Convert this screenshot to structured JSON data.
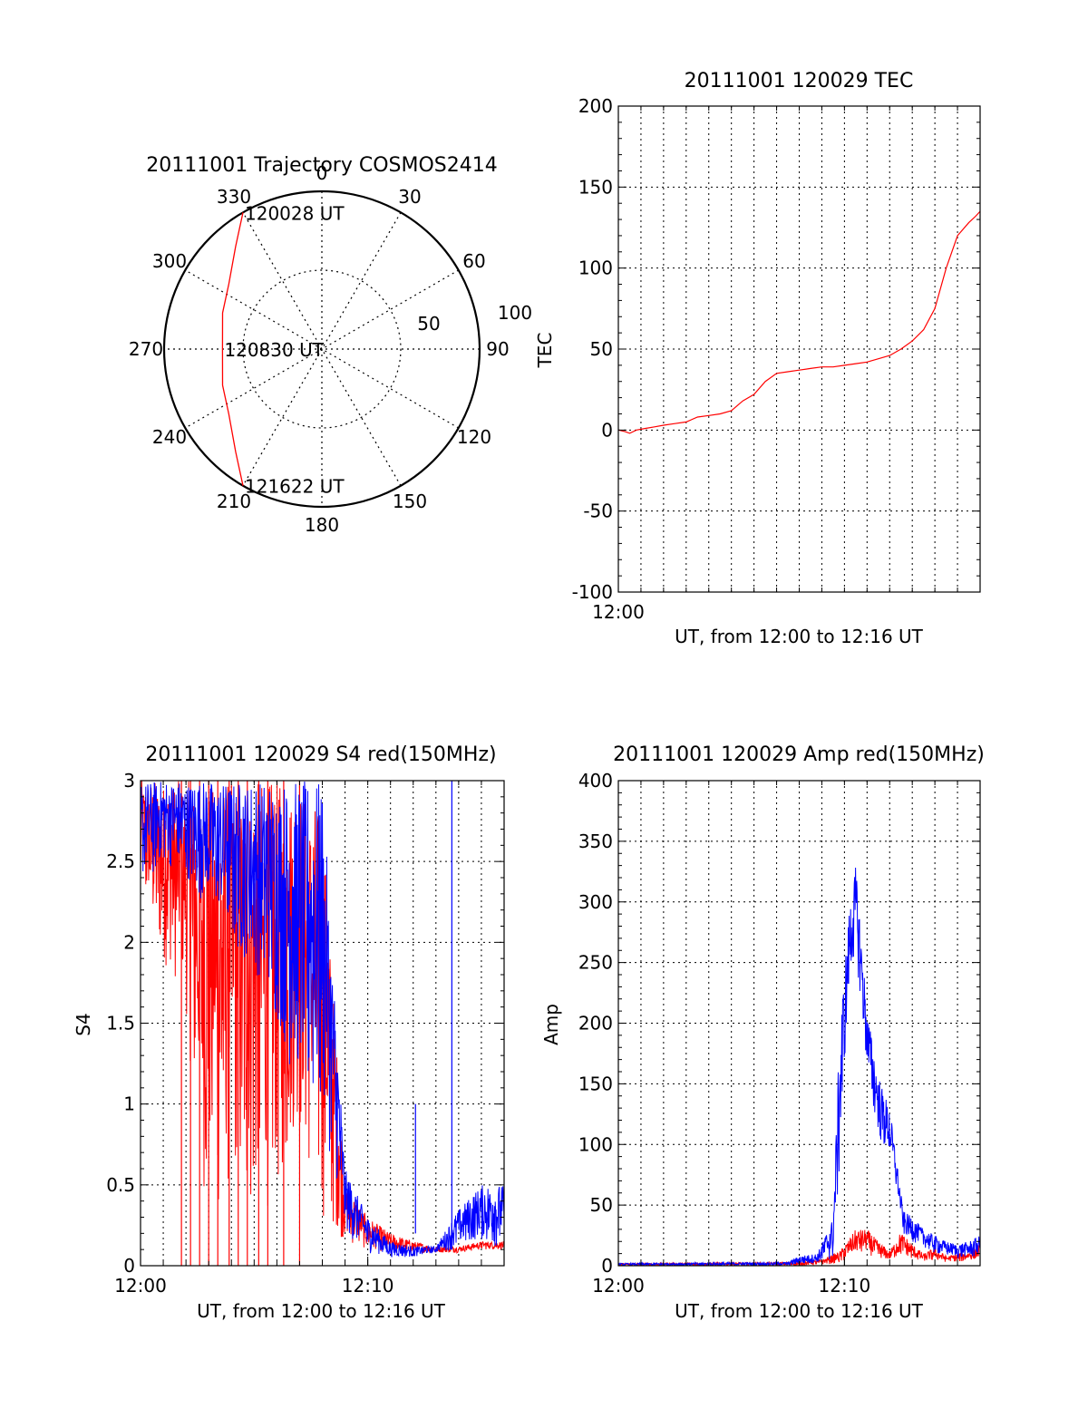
{
  "colors": {
    "red": "#ff0000",
    "blue": "#0000ff",
    "axis": "#000000",
    "grid": "#000000"
  },
  "chart_data": [
    {
      "id": "trajectory",
      "type": "polar",
      "title": "20111001 Trajectory COSMOS2414",
      "angle_labels": [
        "0",
        "30",
        "60",
        "90",
        "120",
        "150",
        "180",
        "210",
        "240",
        "270",
        "300",
        "330"
      ],
      "radius_labels": [
        "50",
        "100"
      ],
      "series": [
        {
          "color": "red",
          "points": [
            [
              330,
              100
            ],
            [
              320,
              85
            ],
            [
              305,
              72
            ],
            [
              290,
              67
            ],
            [
              270,
              63
            ],
            [
              250,
              67
            ],
            [
              235,
              72
            ],
            [
              220,
              85
            ],
            [
              210,
              100
            ]
          ]
        }
      ],
      "annotations": [
        {
          "text": "120028 UT",
          "az": 330,
          "r": 100
        },
        {
          "text": "120830 UT",
          "az": 270,
          "r": 63
        },
        {
          "text": "121622 UT",
          "az": 210,
          "r": 100
        }
      ]
    },
    {
      "id": "tec",
      "type": "line",
      "title": "20111001 120029 TEC",
      "xlabel": "UT, from 12:00 to 12:16 UT",
      "ylabel": "TEC",
      "xlim": [
        0,
        16
      ],
      "ylim": [
        -100,
        200
      ],
      "yticks": [
        "-100",
        "-50",
        "0",
        "50",
        "100",
        "150",
        "200"
      ],
      "xticklabels": [
        {
          "x": 0,
          "label": "12:00"
        }
      ],
      "grid": true,
      "series": [
        {
          "color": "red",
          "x": [
            0,
            0.3,
            0.5,
            0.8,
            1.2,
            1.6,
            2.0,
            2.5,
            3.0,
            3.5,
            4.0,
            4.5,
            5.0,
            5.5,
            6.0,
            6.5,
            7.0,
            7.5,
            8.0,
            8.5,
            9.0,
            9.5,
            10.0,
            10.5,
            11.0,
            11.5,
            12.0,
            12.5,
            13.0,
            13.5,
            14.0,
            14.5,
            15.0,
            15.5,
            15.8,
            16.0
          ],
          "y": [
            0,
            -1,
            -2,
            0,
            1,
            2,
            3,
            4,
            5,
            8,
            9,
            10,
            12,
            18,
            22,
            30,
            35,
            36,
            37,
            38,
            39,
            39,
            40,
            41,
            42,
            44,
            46,
            50,
            55,
            62,
            75,
            100,
            120,
            128,
            132,
            135
          ]
        }
      ]
    },
    {
      "id": "s4",
      "type": "line",
      "title": "20111001 120029 S4 red(150MHz)",
      "xlabel": "UT, from 12:00 to 12:16 UT",
      "ylabel": "S4",
      "xlim": [
        0,
        16
      ],
      "ylim": [
        0,
        3
      ],
      "yticks": [
        "0",
        "0.5",
        "1",
        "1.5",
        "2",
        "2.5",
        "3"
      ],
      "xticklabels": [
        {
          "x": 0,
          "label": "12:00"
        },
        {
          "x": 10,
          "label": "12:10"
        }
      ],
      "grid": true,
      "series": [
        {
          "color": "red",
          "envelope": {
            "x": [
              0,
              1,
              2,
              3,
              4,
              5,
              6,
              7,
              8,
              9,
              10,
              11,
              12,
              13,
              14,
              15,
              16
            ],
            "hi": [
              3,
              3,
              3,
              3,
              3,
              3,
              3,
              3,
              2.8,
              0.5,
              0.3,
              0.2,
              0.15,
              0.12,
              0.12,
              0.15,
              0.15
            ],
            "lo": [
              2.3,
              1.9,
              1.5,
              0.2,
              0.5,
              0.3,
              0.4,
              0.8,
              0.3,
              0.15,
              0.1,
              0.08,
              0.08,
              0.08,
              0.08,
              0.1,
              0.1
            ]
          },
          "drops": [
            1.8,
            2.2,
            2.6,
            3.0,
            3.4,
            3.9,
            4.3,
            4.7,
            5.2,
            5.6,
            6.3,
            7.0
          ]
        },
        {
          "color": "blue",
          "envelope": {
            "x": [
              0,
              1,
              2,
              3,
              4,
              5,
              6,
              7,
              8,
              9,
              10,
              11,
              12,
              13,
              14,
              15,
              16
            ],
            "hi": [
              3,
              3,
              3,
              3,
              3,
              3,
              3,
              3,
              3,
              0.6,
              0.3,
              0.15,
              0.12,
              0.12,
              0.35,
              0.5,
              0.5
            ],
            "lo": [
              2.3,
              2.5,
              2.4,
              2.2,
              2.0,
              1.8,
              1.5,
              1.0,
              0.9,
              0.2,
              0.08,
              0.05,
              0.05,
              0.08,
              0.1,
              0.15,
              0.1
            ]
          },
          "spikes": [
            {
              "x": 12.1,
              "y": 1.0
            },
            {
              "x": 13.7,
              "y": 3.0
            }
          ]
        }
      ]
    },
    {
      "id": "amp",
      "type": "line",
      "title": "20111001 120029 Amp red(150MHz)",
      "xlabel": "UT, from 12:00 to 12:16 UT",
      "ylabel": "Amp",
      "xlim": [
        0,
        16
      ],
      "ylim": [
        0,
        400
      ],
      "yticks": [
        "0",
        "50",
        "100",
        "150",
        "200",
        "250",
        "300",
        "350",
        "400"
      ],
      "xticklabels": [
        {
          "x": 0,
          "label": "12:00"
        },
        {
          "x": 10,
          "label": "12:10"
        }
      ],
      "grid": true,
      "series": [
        {
          "color": "red",
          "envelope": {
            "x": [
              0,
              8,
              9,
              9.8,
              10.5,
              11.0,
              11.5,
              12.0,
              12.5,
              13.0,
              13.5,
              14.0,
              14.5,
              15.0,
              15.5,
              16.0
            ],
            "hi": [
              2,
              3,
              5,
              12,
              30,
              30,
              20,
              12,
              28,
              18,
              10,
              15,
              8,
              10,
              12,
              18
            ],
            "lo": [
              0,
              0,
              1,
              2,
              8,
              10,
              5,
              5,
              8,
              5,
              3,
              4,
              3,
              3,
              4,
              5
            ]
          }
        },
        {
          "color": "blue",
          "envelope": {
            "x": [
              0,
              7.5,
              8.0,
              8.8,
              9.5,
              9.8,
              10.2,
              10.5,
              10.8,
              11.0,
              11.3,
              11.6,
              12.0,
              12.3,
              12.6,
              13.0,
              13.5,
              14.0,
              14.5,
              15.0,
              15.5,
              16.0
            ],
            "hi": [
              2,
              3,
              8,
              10,
              40,
              200,
              290,
              330,
              260,
              210,
              180,
              150,
              130,
              90,
              45,
              40,
              30,
              25,
              20,
              18,
              20,
              25
            ],
            "lo": [
              0,
              0,
              1,
              2,
              5,
              80,
              230,
              260,
              200,
              160,
              120,
              100,
              90,
              60,
              25,
              20,
              15,
              10,
              8,
              6,
              6,
              8
            ]
          }
        }
      ]
    }
  ]
}
